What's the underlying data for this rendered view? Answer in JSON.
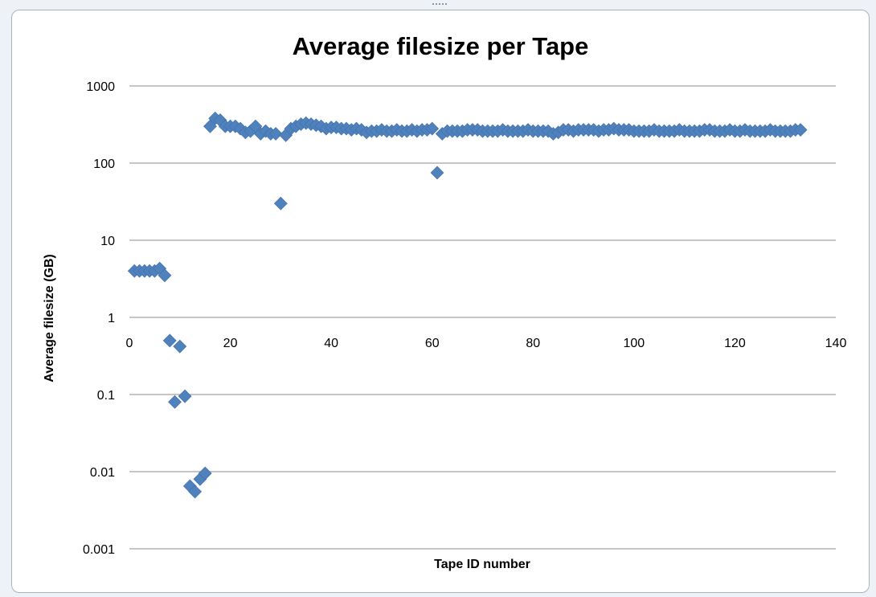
{
  "chart_data": {
    "type": "scatter",
    "title": "Average filesize per Tape",
    "xlabel": "Tape ID number",
    "ylabel": "Average filesize  (GB)",
    "xlim": [
      0,
      140
    ],
    "ylim": [
      0.001,
      1000
    ],
    "yscale": "log",
    "x_ticks": [
      0,
      20,
      40,
      60,
      80,
      100,
      120,
      140
    ],
    "y_ticks": [
      1000,
      100,
      10,
      1,
      0.1,
      0.01,
      0.001
    ],
    "x_tick_labels": [
      "0",
      "20",
      "40",
      "60",
      "80",
      "100",
      "120",
      "140"
    ],
    "y_tick_labels": [
      "1000",
      "100",
      "10",
      "1",
      "0.1",
      "0.01",
      "0.001"
    ],
    "grid": "horizontal",
    "legend": "none",
    "marker": "diamond",
    "color": "#4f81bd",
    "series": [
      {
        "x": [
          1,
          2,
          3,
          4,
          5,
          6,
          7,
          8,
          9,
          10,
          11,
          12,
          13,
          14,
          15,
          16,
          17,
          18,
          19,
          20,
          21,
          22,
          23,
          24,
          25,
          26,
          27,
          28,
          29,
          30,
          31,
          32,
          33,
          34,
          35,
          36,
          37,
          38,
          39,
          40,
          41,
          42,
          43,
          44,
          45,
          46,
          47,
          48,
          49,
          50,
          51,
          52,
          53,
          54,
          55,
          56,
          57,
          58,
          59,
          60,
          61,
          62,
          63,
          64,
          65,
          66,
          67,
          68,
          69,
          70,
          71,
          72,
          73,
          74,
          75,
          76,
          77,
          78,
          79,
          80,
          81,
          82,
          83,
          84,
          85,
          86,
          87,
          88,
          89,
          90,
          91,
          92,
          93,
          94,
          95,
          96,
          97,
          98,
          99,
          100,
          101,
          102,
          103,
          104,
          105,
          106,
          107,
          108,
          109,
          110,
          111,
          112,
          113,
          114,
          115,
          116,
          117,
          118,
          119,
          120,
          121,
          122,
          123,
          124,
          125,
          126,
          127,
          128,
          129,
          130,
          131,
          132,
          133
        ],
        "y": [
          4,
          4,
          4,
          4,
          4,
          4.3,
          3.5,
          0.5,
          0.08,
          0.42,
          0.095,
          0.0065,
          0.0055,
          0.008,
          0.0095,
          300,
          380,
          360,
          300,
          300,
          300,
          280,
          250,
          260,
          300,
          240,
          260,
          240,
          240,
          30,
          230,
          280,
          300,
          320,
          330,
          320,
          310,
          300,
          280,
          290,
          290,
          280,
          280,
          270,
          280,
          270,
          250,
          260,
          260,
          270,
          260,
          260,
          270,
          260,
          260,
          270,
          260,
          270,
          270,
          280,
          75,
          240,
          260,
          260,
          260,
          260,
          270,
          270,
          270,
          260,
          260,
          260,
          260,
          270,
          260,
          260,
          260,
          260,
          270,
          260,
          260,
          260,
          260,
          240,
          250,
          270,
          270,
          260,
          270,
          270,
          270,
          270,
          260,
          270,
          270,
          280,
          270,
          270,
          270,
          260,
          260,
          260,
          260,
          270,
          260,
          260,
          260,
          260,
          270,
          260,
          260,
          260,
          260,
          270,
          270,
          260,
          260,
          260,
          270,
          260,
          260,
          270,
          260,
          260,
          260,
          260,
          270,
          260,
          260,
          260,
          260,
          270,
          270
        ]
      }
    ]
  }
}
